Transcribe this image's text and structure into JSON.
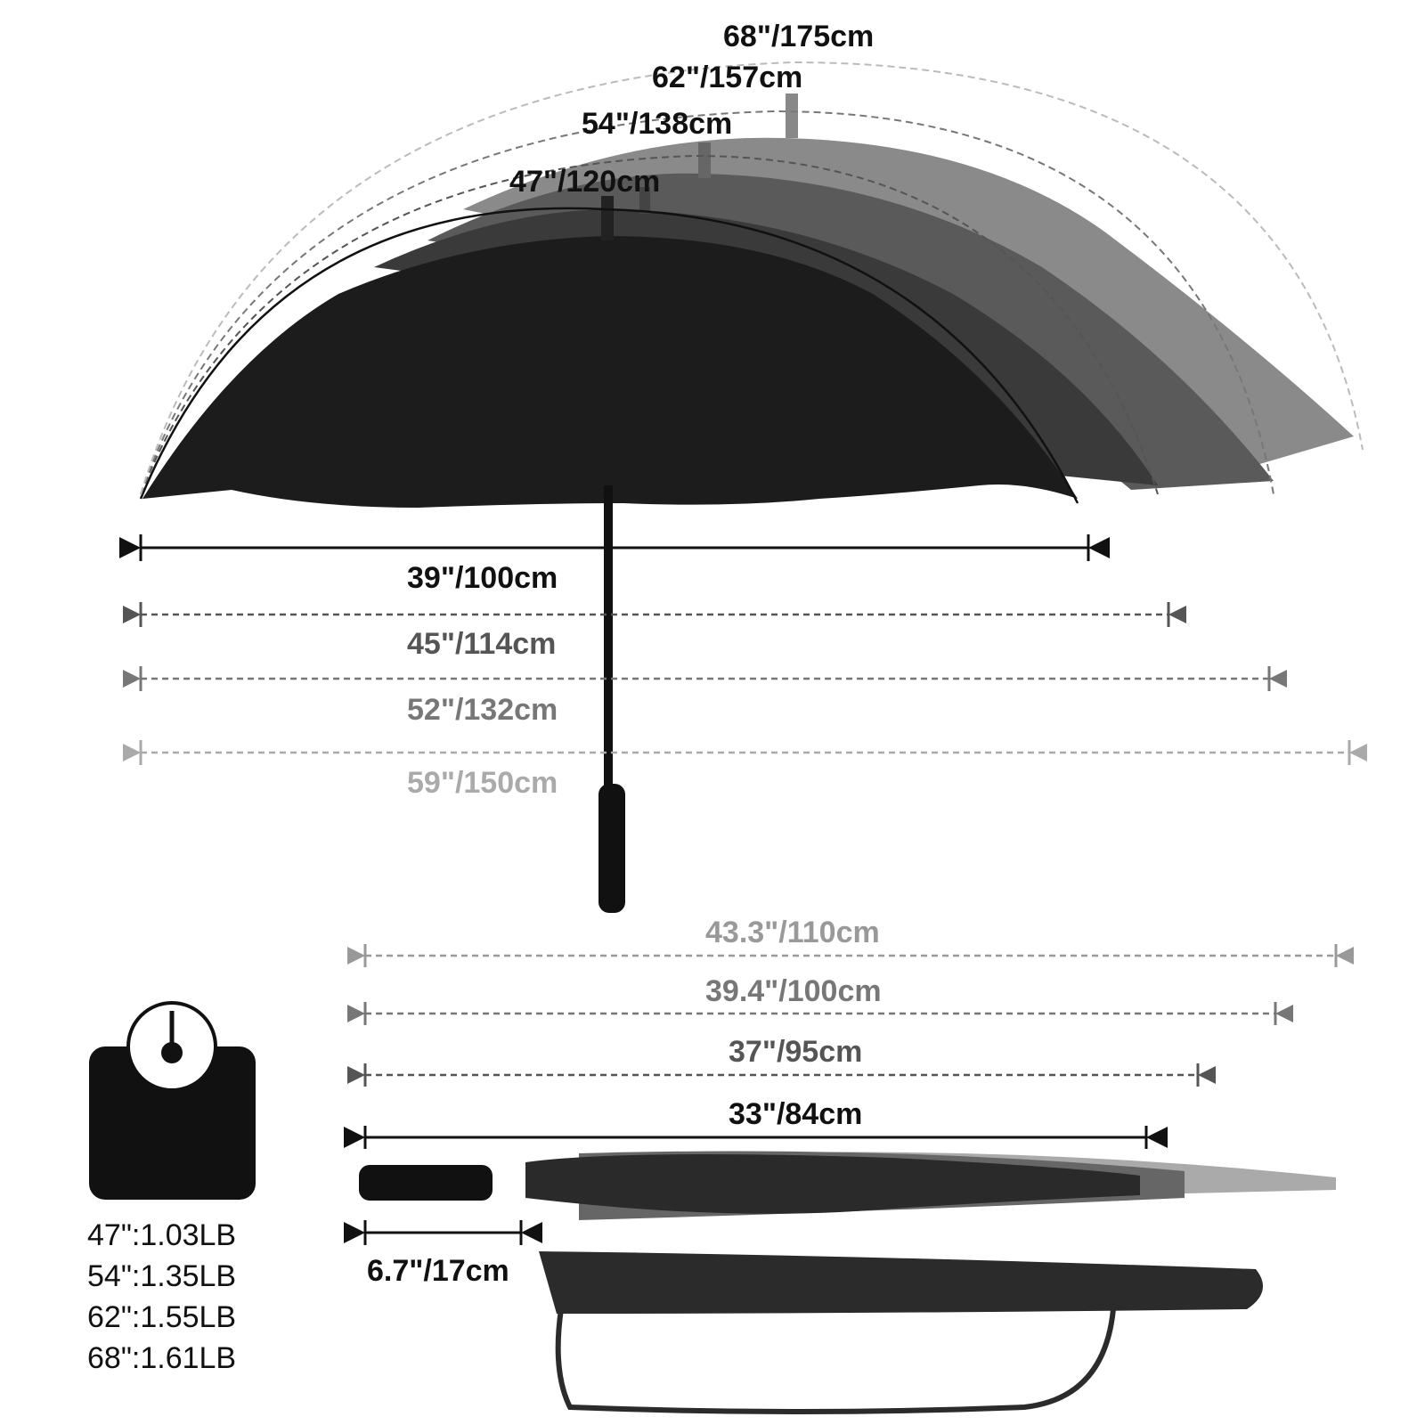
{
  "canopy_arcs": [
    {
      "label": "47\"/120cm",
      "color": "#111111"
    },
    {
      "label": "54\"/138cm",
      "color": "#333333"
    },
    {
      "label": "62\"/157cm",
      "color": "#333333"
    },
    {
      "label": "68\"/175cm",
      "color": "#333333"
    }
  ],
  "spans": [
    {
      "label": "39\"/100cm",
      "color": "#111111"
    },
    {
      "label": "45\"/114cm",
      "color": "#555555"
    },
    {
      "label": "52\"/132cm",
      "color": "#777777"
    },
    {
      "label": "59\"/150cm",
      "color": "#aaaaaa"
    }
  ],
  "closed_lengths": [
    {
      "label": "43.3\"/110cm",
      "color": "#999999"
    },
    {
      "label": "39.4\"/100cm",
      "color": "#777777"
    },
    {
      "label": "37\"/95cm",
      "color": "#555555"
    },
    {
      "label": "33\"/84cm",
      "color": "#111111"
    }
  ],
  "handle_length": "6.7\"/17cm",
  "weights": [
    "47\":1.03LB",
    "54\":1.35LB",
    "62\":1.55LB",
    "68\":1.61LB"
  ],
  "icons": {
    "scale": "weight-scale-icon"
  }
}
